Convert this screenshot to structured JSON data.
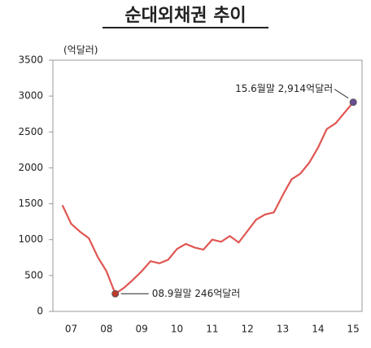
{
  "chart_data": {
    "type": "line",
    "title": "순대외채권 추이",
    "y_unit": "(억달러)",
    "x": [
      2007.25,
      2007.5,
      2007.75,
      2008.0,
      2008.25,
      2008.5,
      2008.75,
      2009.0,
      2009.25,
      2009.5,
      2009.75,
      2010.0,
      2010.25,
      2010.5,
      2010.75,
      2011.0,
      2011.25,
      2011.5,
      2011.75,
      2012.0,
      2012.25,
      2012.5,
      2012.75,
      2013.0,
      2013.25,
      2013.5,
      2013.75,
      2014.0,
      2014.25,
      2014.5,
      2014.75,
      2015.0,
      2015.5
    ],
    "series": [
      {
        "name": "순대외채권",
        "color": "#e05552",
        "values": [
          1480,
          1220,
          1110,
          1020,
          760,
          560,
          246,
          330,
          440,
          560,
          700,
          670,
          720,
          870,
          940,
          890,
          860,
          1000,
          970,
          1050,
          960,
          1120,
          1280,
          1350,
          1380,
          1620,
          1840,
          1920,
          2070,
          2280,
          2540,
          2620,
          2914
        ]
      }
    ],
    "annotations": [
      {
        "x": 2008.75,
        "y": 246,
        "text": "08.9월말 246억달러",
        "color": "#c0392b"
      },
      {
        "x": 2015.5,
        "y": 2914,
        "text": "15.6월말 2,914억달러",
        "color": "#6a4c93"
      }
    ],
    "xlim": [
      2006.98,
      2015.75
    ],
    "ylim": [
      0,
      3500
    ],
    "xticks": [
      {
        "value": 2007.5,
        "label": "07"
      },
      {
        "value": 2008.5,
        "label": "08"
      },
      {
        "value": 2009.5,
        "label": "09"
      },
      {
        "value": 2010.5,
        "label": "10"
      },
      {
        "value": 2011.5,
        "label": "11"
      },
      {
        "value": 2012.5,
        "label": "12"
      },
      {
        "value": 2013.5,
        "label": "13"
      },
      {
        "value": 2014.5,
        "label": "14"
      },
      {
        "value": 2015.5,
        "label": "15"
      }
    ],
    "yticks": [
      0,
      500,
      1000,
      1500,
      2000,
      2500,
      3000,
      3500
    ],
    "grid": false
  }
}
